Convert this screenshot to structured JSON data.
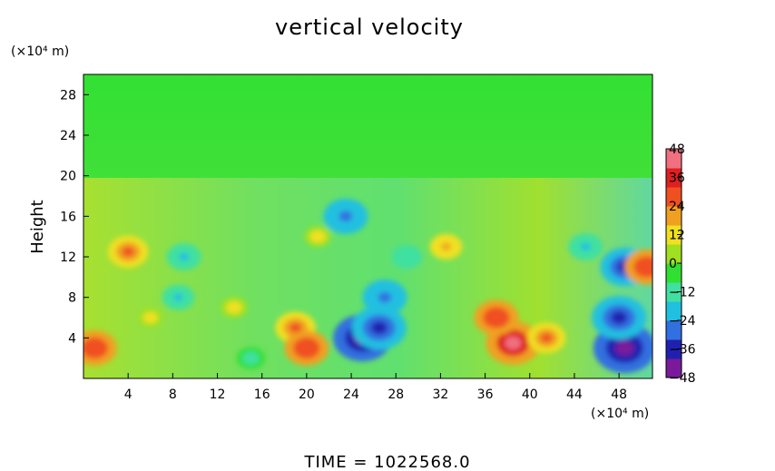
{
  "chart_data": {
    "type": "heatmap",
    "title": "vertical velocity",
    "ylabel": "Height",
    "y_unit": "(×10⁴ m)",
    "x_unit": "(×10⁴ m)",
    "footer": "TIME  =  1022568.0",
    "xlim": [
      0,
      51
    ],
    "ylim": [
      0,
      30
    ],
    "x_ticks": [
      4,
      8,
      12,
      16,
      20,
      24,
      28,
      32,
      36,
      40,
      44,
      48
    ],
    "x_tick_labels": [
      "4",
      "8",
      "12",
      "16",
      "20",
      "24",
      "28",
      "32",
      "36",
      "40",
      "44",
      "48"
    ],
    "y_ticks": [
      4,
      8,
      12,
      16,
      20,
      24,
      28
    ],
    "y_tick_labels": [
      "4",
      "8",
      "12",
      "16",
      "20",
      "24",
      "28"
    ],
    "colorbar": {
      "range": [
        -48,
        48
      ],
      "ticks": [
        48,
        36,
        24,
        12,
        0,
        -12,
        -24,
        -36,
        -48
      ],
      "tick_labels": [
        "48",
        "36",
        "24",
        "12",
        "0",
        "−12",
        "−24",
        "−36",
        "−48"
      ],
      "colors": [
        "#7a1a9a",
        "#2020b0",
        "#3070e0",
        "#20c0e0",
        "#40e0a0",
        "#30e030",
        "#a0e020",
        "#f0e020",
        "#f0a020",
        "#f05020",
        "#e02020",
        "#f07080"
      ]
    },
    "features": [
      {
        "x": 25,
        "y": 4,
        "value": -44
      },
      {
        "x": 26.5,
        "y": 5,
        "value": -40
      },
      {
        "x": 27,
        "y": 8,
        "value": -30
      },
      {
        "x": 23.5,
        "y": 16,
        "value": -30
      },
      {
        "x": 48.5,
        "y": 3,
        "value": -48
      },
      {
        "x": 48,
        "y": 6,
        "value": -40
      },
      {
        "x": 48.5,
        "y": 11,
        "value": -34
      },
      {
        "x": 38.5,
        "y": 3.5,
        "value": 40
      },
      {
        "x": 37,
        "y": 6,
        "value": 30
      },
      {
        "x": 41.5,
        "y": 4,
        "value": 24
      },
      {
        "x": 1,
        "y": 3,
        "value": 30
      },
      {
        "x": 4,
        "y": 12.5,
        "value": 26
      },
      {
        "x": 19,
        "y": 5,
        "value": 26
      },
      {
        "x": 20,
        "y": 3,
        "value": 30
      },
      {
        "x": 50.5,
        "y": 11,
        "value": 30
      },
      {
        "x": 9,
        "y": 12,
        "value": -20
      },
      {
        "x": 8.5,
        "y": 8,
        "value": -18
      },
      {
        "x": 15,
        "y": 2,
        "value": -14
      },
      {
        "x": 29,
        "y": 12,
        "value": -16
      },
      {
        "x": 45,
        "y": 13,
        "value": -20
      },
      {
        "x": 6,
        "y": 6,
        "value": 10
      },
      {
        "x": 13.5,
        "y": 7,
        "value": 12
      },
      {
        "x": 21,
        "y": 14,
        "value": 12
      },
      {
        "x": 32.5,
        "y": 13,
        "value": 18
      }
    ]
  }
}
